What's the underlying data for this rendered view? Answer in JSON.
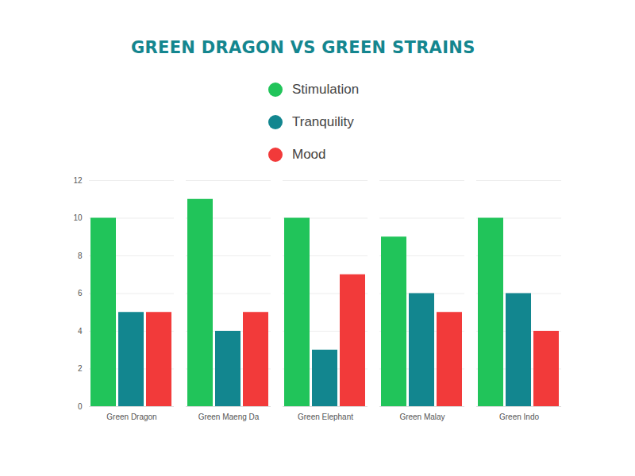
{
  "chart_data": {
    "type": "bar",
    "title": "GREEN DRAGON VS GREEN STRAINS",
    "categories": [
      "Green Dragon",
      "Green Maeng Da",
      "Green Elephant",
      "Green Malay",
      "Green Indo"
    ],
    "series": [
      {
        "name": "Stimulation",
        "color": "#21c45a",
        "values": [
          10,
          11,
          10,
          9,
          10
        ]
      },
      {
        "name": "Tranquility",
        "color": "#12868f",
        "values": [
          5,
          4,
          3,
          6,
          6
        ]
      },
      {
        "name": "Mood",
        "color": "#f23a3a",
        "values": [
          5,
          5,
          7,
          5,
          4
        ]
      }
    ],
    "ylim": [
      0,
      12
    ],
    "yticks": [
      0,
      2,
      4,
      6,
      8,
      10,
      12
    ],
    "grid": true,
    "legend": "top"
  }
}
